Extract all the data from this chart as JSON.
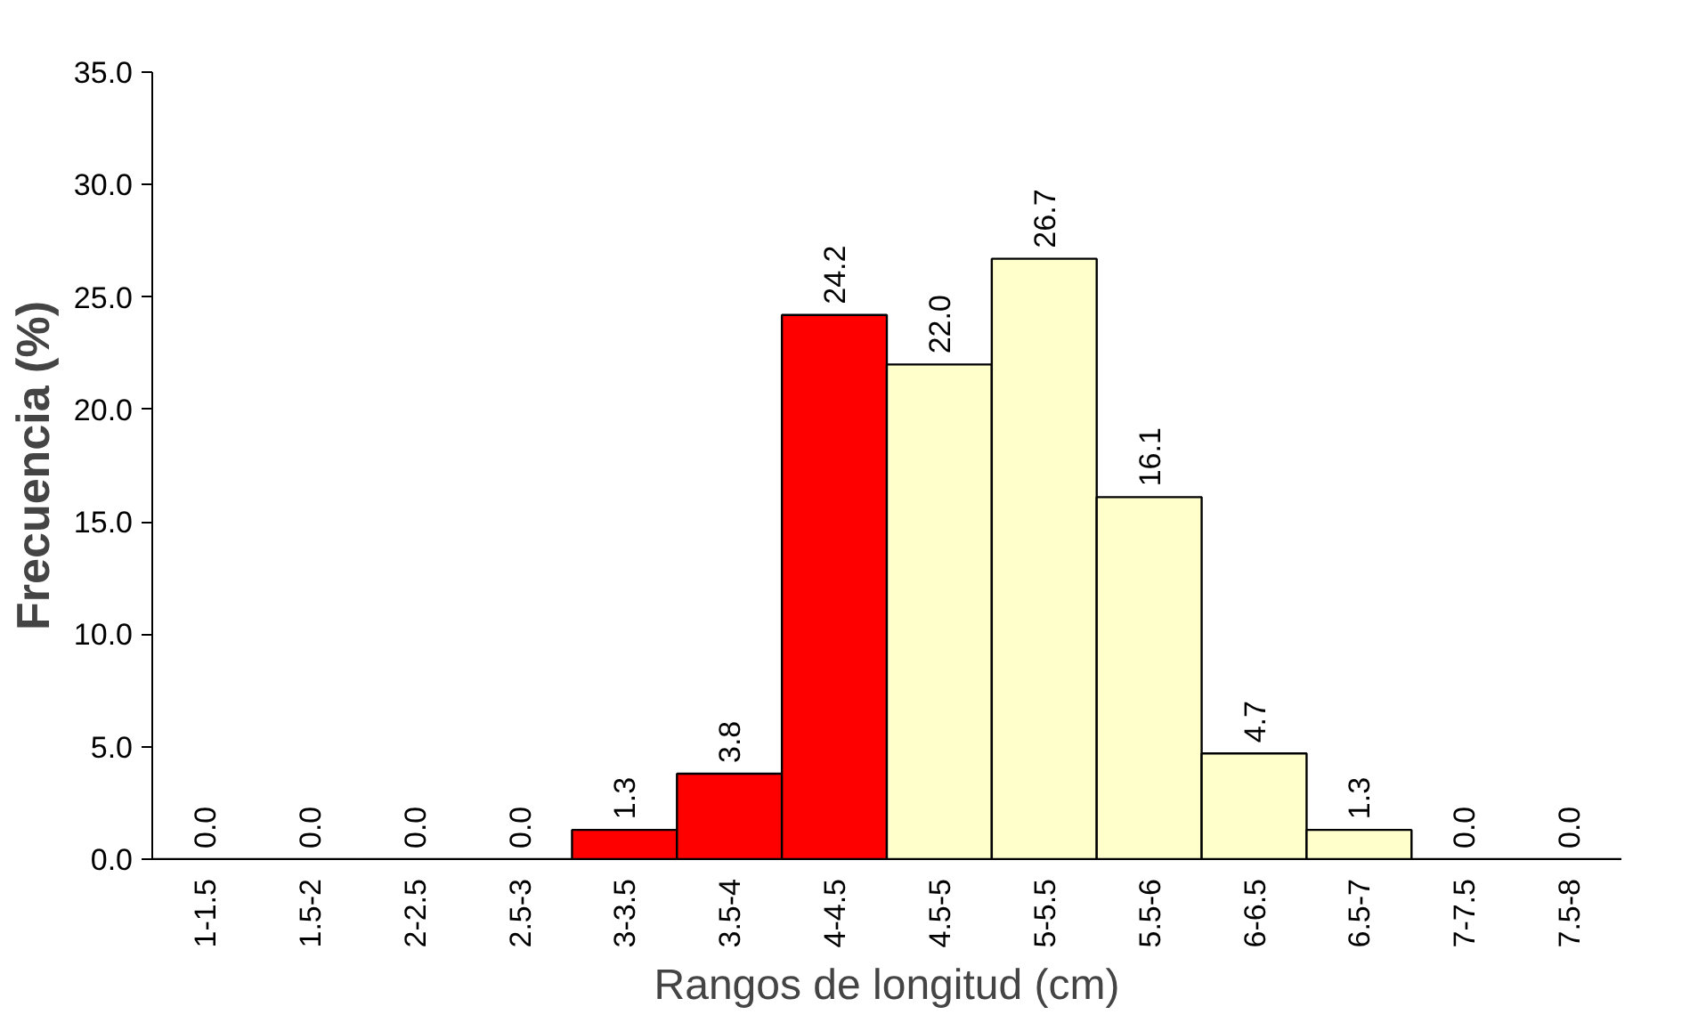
{
  "chart_data": {
    "type": "bar",
    "xlabel": "Rangos de longitud (cm)",
    "ylabel": "Frecuencia (%)",
    "categories": [
      "1-1.5",
      "1.5-2",
      "2-2.5",
      "2.5-3",
      "3-3.5",
      "3.5-4",
      "4-4.5",
      "4.5-5",
      "5-5.5",
      "5.5-6",
      "6-6.5",
      "6.5-7",
      "7-7.5",
      "7.5-8"
    ],
    "values": [
      0,
      0,
      0,
      0,
      1.3,
      3.8,
      24.2,
      22.0,
      26.7,
      16.1,
      4.7,
      1.3,
      0,
      0
    ],
    "value_labels": [
      "0.0",
      "0.0",
      "0.0",
      "0.0",
      "1.3",
      "3.8",
      "24.2",
      "22.0",
      "26.7",
      "16.1",
      "4.7",
      "1.3",
      "0.0",
      "0.0"
    ],
    "colors": [
      "#000000",
      "#000000",
      "#000000",
      "#000000",
      "#ff0000",
      "#ff0000",
      "#ff0000",
      "#ffffcc",
      "#ffffcc",
      "#ffffcc",
      "#ffffcc",
      "#ffffcc",
      "#000000",
      "#000000"
    ],
    "ylim": [
      0,
      35
    ],
    "yticks": [
      {
        "value": 0,
        "label": "0.0"
      },
      {
        "value": 5,
        "label": "5.0"
      },
      {
        "value": 10,
        "label": "10.0"
      },
      {
        "value": 15,
        "label": "15.0"
      },
      {
        "value": 20,
        "label": "20.0"
      },
      {
        "value": 25,
        "label": "25.0"
      },
      {
        "value": 30,
        "label": "30.0"
      },
      {
        "value": 35,
        "label": "35.0"
      }
    ],
    "grid": false
  }
}
